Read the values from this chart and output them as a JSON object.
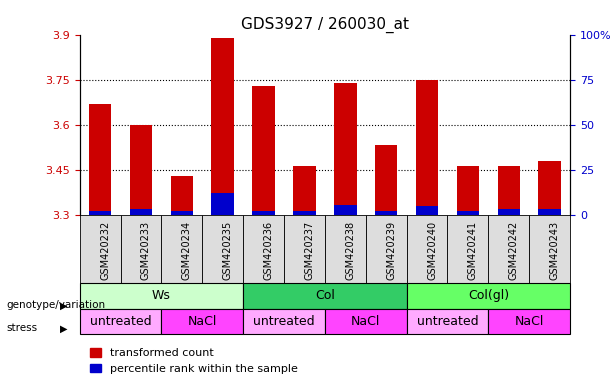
{
  "title": "GDS3927 / 260030_at",
  "samples": [
    "GSM420232",
    "GSM420233",
    "GSM420234",
    "GSM420235",
    "GSM420236",
    "GSM420237",
    "GSM420238",
    "GSM420239",
    "GSM420240",
    "GSM420241",
    "GSM420242",
    "GSM420243"
  ],
  "red_values": [
    3.67,
    3.6,
    3.43,
    3.89,
    3.73,
    3.465,
    3.74,
    3.535,
    3.75,
    3.465,
    3.465,
    3.48
  ],
  "blue_values": [
    3.315,
    3.32,
    3.315,
    3.375,
    3.315,
    3.315,
    3.335,
    3.315,
    3.33,
    3.315,
    3.32,
    3.32
  ],
  "bar_bottom": 3.3,
  "ylim_left": [
    3.3,
    3.9
  ],
  "ylim_right": [
    0,
    100
  ],
  "yticks_left": [
    3.3,
    3.45,
    3.6,
    3.75,
    3.9
  ],
  "yticks_right": [
    0,
    25,
    50,
    75,
    100
  ],
  "ytick_labels_left": [
    "3.3",
    "3.45",
    "3.6",
    "3.75",
    "3.9"
  ],
  "ytick_labels_right": [
    "0",
    "25",
    "50",
    "75",
    "100%"
  ],
  "red_color": "#cc0000",
  "blue_color": "#0000cc",
  "grid_color": "#000000",
  "genotype_groups": [
    {
      "label": "Ws",
      "start": 0,
      "end": 4,
      "color": "#ccffcc"
    },
    {
      "label": "Col",
      "start": 4,
      "end": 8,
      "color": "#33cc66"
    },
    {
      "label": "Col(gl)",
      "start": 8,
      "end": 12,
      "color": "#66ff66"
    }
  ],
  "stress_groups": [
    {
      "label": "untreated",
      "start": 0,
      "end": 2,
      "color": "#ffaaff"
    },
    {
      "label": "NaCl",
      "start": 2,
      "end": 4,
      "color": "#ff44ff"
    },
    {
      "label": "untreated",
      "start": 4,
      "end": 6,
      "color": "#ffaaff"
    },
    {
      "label": "NaCl",
      "start": 6,
      "end": 8,
      "color": "#ff44ff"
    },
    {
      "label": "untreated",
      "start": 8,
      "end": 10,
      "color": "#ffaaff"
    },
    {
      "label": "NaCl",
      "start": 10,
      "end": 12,
      "color": "#ff44ff"
    }
  ],
  "legend_red_label": "transformed count",
  "legend_blue_label": "percentile rank within the sample",
  "genotype_label": "genotype/variation",
  "stress_label": "stress",
  "bar_width": 0.55,
  "left_label_color": "#cc0000",
  "right_label_color": "#0000cc",
  "title_fontsize": 11,
  "tick_fontsize": 8,
  "sample_fontsize": 7,
  "group_fontsize": 9,
  "legend_fontsize": 8
}
